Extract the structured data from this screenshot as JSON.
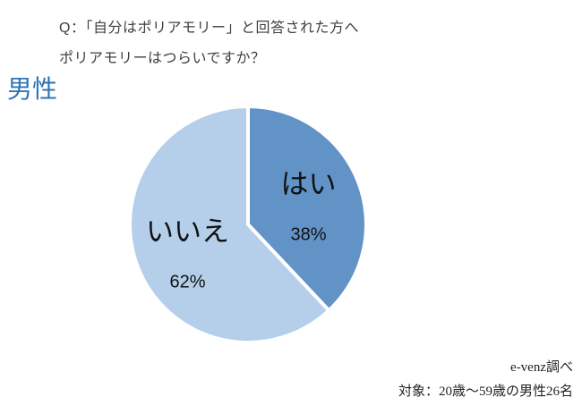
{
  "header": {
    "question_line1": "Q：「自分はポリアモリー」と回答された方へ",
    "question_line2": "ポリアモリーはつらいですか？"
  },
  "chart_data": {
    "type": "pie",
    "title": "男性",
    "slices": [
      {
        "label": "はい",
        "value": 38,
        "pct_label": "38%",
        "color": "#6293c7"
      },
      {
        "label": "いいえ",
        "value": 62,
        "pct_label": "62%",
        "color": "#b5cfea"
      }
    ],
    "start_angle_deg": 0,
    "direction": "clockwise",
    "divider_color": "#ffffff",
    "legend": "none"
  },
  "footer": {
    "source": "e-venz調べ",
    "target": "対象：20歳〜59歳の男性26名"
  },
  "colors": {
    "title_blue": "#2e74b5",
    "body_text": "#3f3f3f",
    "slice_yes": "#6293c7",
    "slice_no": "#b5cfea"
  }
}
